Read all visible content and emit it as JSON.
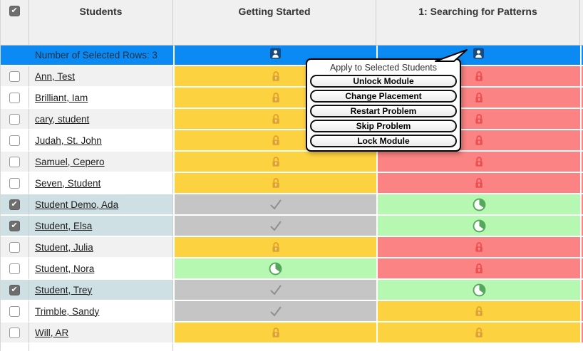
{
  "table": {
    "header": {
      "select_all_checked": true,
      "columns": [
        {
          "label": "Students"
        },
        {
          "label": "Getting Started"
        },
        {
          "label": "1: Searching for Patterns"
        }
      ]
    },
    "selection_row": {
      "label": "Number of Selected Rows: 3",
      "icon": "person-icon",
      "bg": "#0a8af2"
    },
    "rows": [
      {
        "name": "Ann, Test",
        "checked": false,
        "statuses": [
          "unlocked",
          "locked"
        ],
        "overflow": "locked"
      },
      {
        "name": "Brilliant, Iam",
        "checked": false,
        "statuses": [
          "unlocked",
          "locked"
        ],
        "overflow": "locked"
      },
      {
        "name": "cary, student",
        "checked": false,
        "statuses": [
          "unlocked",
          "locked"
        ],
        "overflow": "locked"
      },
      {
        "name": "Judah, St. John",
        "checked": false,
        "statuses": [
          "unlocked",
          "locked"
        ],
        "overflow": "locked"
      },
      {
        "name": "Samuel, Cepero",
        "checked": false,
        "statuses": [
          "unlocked",
          "locked"
        ],
        "overflow": "locked"
      },
      {
        "name": "Seven, Student",
        "checked": false,
        "statuses": [
          "unlocked",
          "locked"
        ],
        "overflow": "locked"
      },
      {
        "name": "Student Demo, Ada",
        "checked": true,
        "statuses": [
          "completed",
          "in_progress"
        ],
        "overflow": "locked"
      },
      {
        "name": "Student, Elsa",
        "checked": true,
        "statuses": [
          "completed",
          "in_progress"
        ],
        "overflow": "locked"
      },
      {
        "name": "Student, Julia",
        "checked": false,
        "statuses": [
          "unlocked",
          "locked"
        ],
        "overflow": "locked"
      },
      {
        "name": "Student, Nora",
        "checked": false,
        "statuses": [
          "in_progress",
          "locked"
        ],
        "overflow": "locked"
      },
      {
        "name": "Student, Trey",
        "checked": true,
        "statuses": [
          "completed",
          "in_progress"
        ],
        "overflow": "locked"
      },
      {
        "name": "Trimble, Sandy",
        "checked": false,
        "statuses": [
          "completed",
          "unlocked"
        ],
        "overflow": "locked"
      },
      {
        "name": "Will, AR",
        "checked": false,
        "statuses": [
          "unlocked",
          "unlocked"
        ],
        "overflow": "locked"
      }
    ],
    "status_styles": {
      "unlocked": {
        "bg": "#fdd240",
        "icon_color": "#dfa22e",
        "icon": "lock-open-icon"
      },
      "locked": {
        "bg": "#fb8383",
        "icon_color": "#ee4f4f",
        "icon": "lock-closed-icon"
      },
      "completed": {
        "bg": "#c5c5c5",
        "icon_color": "#8f8f8f",
        "icon": "check-icon"
      },
      "in_progress": {
        "bg": "#b6f8b1",
        "icon_color": "#55a85b",
        "icon": "pie-progress-icon"
      }
    },
    "selected_row_bg": "#cfe0e5"
  },
  "popup": {
    "title": "Apply to Selected Students",
    "buttons": [
      "Unlock Module",
      "Change Placement",
      "Restart Problem",
      "Skip Problem",
      "Lock Module"
    ]
  }
}
